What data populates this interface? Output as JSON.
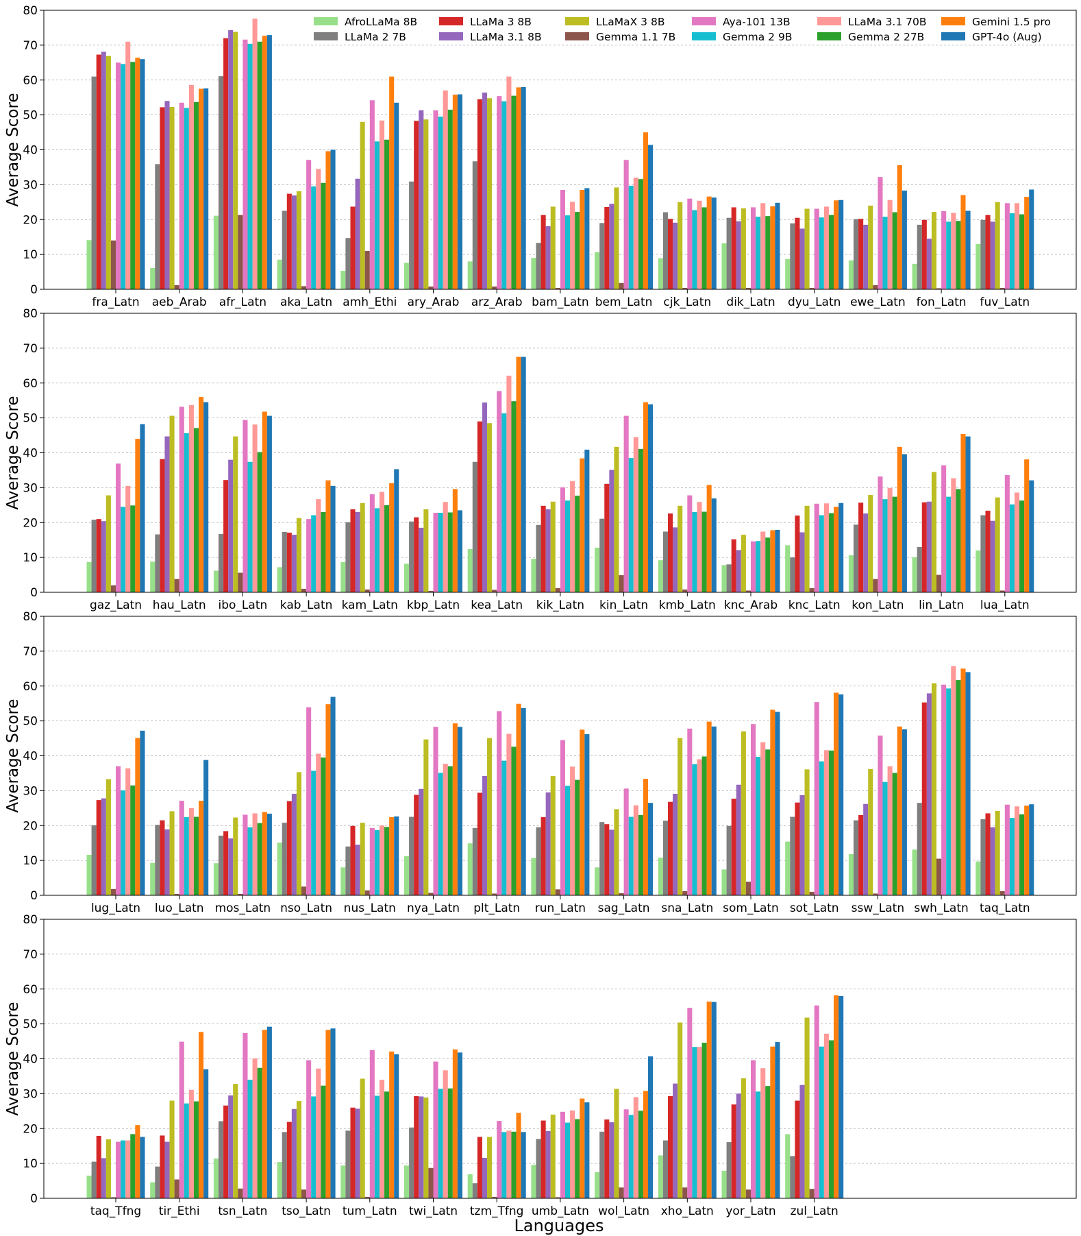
{
  "figure": {
    "xlabel": "Languages"
  },
  "series_meta": [
    {
      "name": "AfroLLaMa 8B",
      "color": "#98df8a"
    },
    {
      "name": "LLaMa 2 7B",
      "color": "#7f7f7f"
    },
    {
      "name": "LLaMa 3 8B",
      "color": "#d62728"
    },
    {
      "name": "LLaMa 3.1 8B",
      "color": "#9467bd"
    },
    {
      "name": "LLaMaX 3 8B",
      "color": "#bcbd22"
    },
    {
      "name": "Gemma 1.1 7B",
      "color": "#8c564b"
    },
    {
      "name": "Aya-101 13B",
      "color": "#e377c2"
    },
    {
      "name": "Gemma 2 9B",
      "color": "#17becf"
    },
    {
      "name": "LLaMa 3.1 70B",
      "color": "#ff9896"
    },
    {
      "name": "Gemma 2 27B",
      "color": "#2ca02c"
    },
    {
      "name": "Gemini 1.5 pro",
      "color": "#ff7f0e"
    },
    {
      "name": "GPT-4o (Aug)",
      "color": "#1f77b4"
    }
  ],
  "legend": {
    "placement": "top-right"
  },
  "chart_data": [
    {
      "type": "bar",
      "ylabel": "Average Score",
      "ylim": [
        0,
        80
      ],
      "yticks": [
        0,
        10,
        20,
        30,
        40,
        50,
        60,
        70,
        80
      ],
      "grid": true,
      "categories": [
        "fra_Latn",
        "aeb_Arab",
        "afr_Latn",
        "aka_Latn",
        "amh_Ethi",
        "ary_Arab",
        "arz_Arab",
        "bam_Latn",
        "bem_Latn",
        "cjk_Latn",
        "dik_Latn",
        "dyu_Latn",
        "ewe_Latn",
        "fon_Latn",
        "fuv_Latn"
      ],
      "series": [
        {
          "name": "AfroLLaMa 8B",
          "values": [
            14.1,
            6.1,
            21.1,
            8.5,
            5.3,
            7.6,
            8.0,
            9.0,
            10.6,
            8.9,
            13.2,
            8.7,
            8.3,
            7.3,
            13.0
          ]
        },
        {
          "name": "LLaMa 2 7B",
          "values": [
            61.0,
            35.9,
            61.1,
            22.5,
            14.7,
            30.9,
            36.7,
            13.3,
            19.0,
            22.1,
            20.5,
            18.9,
            20.1,
            18.5,
            19.9
          ]
        },
        {
          "name": "LLaMa 3 8B",
          "values": [
            67.3,
            52.2,
            72.0,
            27.4,
            23.7,
            48.3,
            54.5,
            21.3,
            23.6,
            20.2,
            23.5,
            20.5,
            20.2,
            19.9,
            21.3
          ]
        },
        {
          "name": "LLaMa 3.1 8B",
          "values": [
            68.1,
            54.0,
            74.3,
            26.9,
            31.7,
            51.3,
            56.4,
            18.1,
            24.5,
            19.1,
            19.5,
            17.4,
            18.5,
            14.5,
            19.4
          ]
        },
        {
          "name": "LLaMaX 3 8B",
          "values": [
            66.9,
            52.3,
            73.8,
            28.1,
            48.0,
            48.7,
            54.8,
            23.7,
            29.2,
            25.0,
            23.2,
            23.1,
            24.0,
            22.2,
            25.0
          ]
        },
        {
          "name": "Gemma 1.1 7B",
          "values": [
            14.0,
            1.2,
            21.3,
            0.9,
            11.0,
            0.8,
            0.8,
            0.4,
            1.8,
            0.4,
            0.4,
            0.4,
            1.2,
            0.3,
            0.4
          ]
        },
        {
          "name": "Aya-101 13B",
          "values": [
            65.0,
            53.5,
            71.6,
            37.1,
            54.2,
            51.3,
            55.4,
            28.5,
            37.1,
            26.0,
            23.5,
            23.1,
            32.2,
            22.4,
            24.7
          ]
        },
        {
          "name": "Gemma 2 9B",
          "values": [
            64.6,
            52.0,
            70.4,
            29.5,
            42.4,
            49.5,
            53.9,
            21.2,
            29.7,
            22.7,
            20.8,
            20.6,
            20.8,
            19.4,
            21.8
          ]
        },
        {
          "name": "LLaMa 3.1 70B",
          "values": [
            71.0,
            58.6,
            77.6,
            34.5,
            48.4,
            57.0,
            61.0,
            25.1,
            32.0,
            25.4,
            24.7,
            23.7,
            25.6,
            21.9,
            24.7
          ]
        },
        {
          "name": "Gemma 2 27B",
          "values": [
            65.2,
            53.7,
            71.0,
            30.5,
            42.9,
            51.5,
            55.5,
            22.2,
            31.6,
            23.5,
            21.0,
            21.3,
            22.1,
            19.6,
            21.5
          ]
        },
        {
          "name": "Gemini 1.5 pro",
          "values": [
            66.4,
            57.5,
            72.7,
            39.6,
            61.0,
            55.8,
            57.9,
            28.5,
            45.0,
            26.6,
            23.8,
            25.5,
            35.6,
            27.0,
            26.5
          ]
        },
        {
          "name": "GPT-4o (Aug)",
          "values": [
            66.0,
            57.6,
            72.9,
            40.0,
            53.5,
            55.9,
            58.0,
            29.0,
            41.4,
            26.3,
            24.8,
            25.6,
            28.3,
            22.5,
            28.6
          ]
        }
      ]
    },
    {
      "type": "bar",
      "ylabel": "Average Score",
      "ylim": [
        0,
        80
      ],
      "yticks": [
        0,
        10,
        20,
        30,
        40,
        50,
        60,
        70,
        80
      ],
      "grid": true,
      "categories": [
        "gaz_Latn",
        "hau_Latn",
        "ibo_Latn",
        "kab_Latn",
        "kam_Latn",
        "kbp_Latn",
        "kea_Latn",
        "kik_Latn",
        "kin_Latn",
        "kmb_Latn",
        "knc_Arab",
        "knc_Latn",
        "kon_Latn",
        "lin_Latn",
        "lua_Latn"
      ],
      "series": [
        {
          "name": "AfroLLaMa 8B",
          "values": [
            8.7,
            8.8,
            6.2,
            7.2,
            8.7,
            8.2,
            12.4,
            9.6,
            12.8,
            9.2,
            7.8,
            13.5,
            10.6,
            10.0,
            12.0
          ]
        },
        {
          "name": "LLaMa 2 7B",
          "values": [
            20.8,
            16.6,
            16.7,
            17.3,
            20.1,
            20.3,
            37.4,
            19.3,
            21.1,
            17.4,
            8.0,
            10.0,
            19.4,
            13.0,
            22.1
          ]
        },
        {
          "name": "LLaMa 3 8B",
          "values": [
            21.0,
            38.2,
            32.2,
            17.1,
            23.8,
            21.5,
            49.0,
            24.8,
            31.1,
            22.6,
            15.2,
            22.0,
            25.7,
            25.8,
            23.4
          ]
        },
        {
          "name": "LLaMa 3.1 8B",
          "values": [
            20.4,
            44.7,
            38.0,
            16.5,
            23.0,
            18.5,
            54.4,
            23.8,
            35.1,
            18.6,
            12.1,
            17.2,
            22.6,
            26.0,
            20.5
          ]
        },
        {
          "name": "LLaMaX 3 8B",
          "values": [
            27.8,
            50.6,
            44.7,
            21.3,
            25.6,
            23.8,
            48.5,
            26.0,
            41.7,
            24.8,
            16.5,
            24.8,
            27.9,
            34.5,
            27.2
          ]
        },
        {
          "name": "Gemma 1.1 7B",
          "values": [
            2.0,
            3.8,
            5.6,
            1.0,
            0.8,
            0.4,
            0.7,
            1.2,
            4.9,
            0.8,
            0.5,
            1.2,
            3.8,
            5.0,
            0.5
          ]
        },
        {
          "name": "Aya-101 13B",
          "values": [
            36.9,
            53.2,
            49.4,
            21.0,
            28.1,
            22.8,
            57.7,
            30.1,
            50.6,
            27.8,
            14.6,
            25.4,
            33.2,
            36.4,
            33.6
          ]
        },
        {
          "name": "Gemma 2 9B",
          "values": [
            24.5,
            45.6,
            37.4,
            22.1,
            24.1,
            22.8,
            51.3,
            26.3,
            38.5,
            23.0,
            14.7,
            22.1,
            26.7,
            27.4,
            25.2
          ]
        },
        {
          "name": "LLaMa 3.1 70B",
          "values": [
            30.5,
            53.7,
            48.1,
            26.7,
            28.8,
            25.9,
            62.1,
            31.9,
            44.5,
            25.9,
            17.4,
            25.5,
            29.9,
            32.7,
            28.6
          ]
        },
        {
          "name": "Gemma 2 27B",
          "values": [
            24.9,
            47.1,
            40.2,
            23.0,
            25.0,
            22.9,
            54.8,
            27.7,
            41.1,
            23.1,
            15.7,
            22.7,
            27.4,
            29.6,
            26.3
          ]
        },
        {
          "name": "Gemini 1.5 pro",
          "values": [
            44.0,
            56.0,
            51.8,
            32.1,
            31.3,
            29.6,
            67.5,
            38.4,
            54.5,
            30.8,
            17.8,
            24.5,
            41.7,
            45.4,
            38.1
          ]
        },
        {
          "name": "GPT-4o (Aug)",
          "values": [
            48.2,
            54.5,
            50.6,
            30.5,
            35.3,
            23.5,
            67.5,
            40.9,
            53.9,
            26.9,
            17.9,
            25.6,
            39.6,
            44.7,
            32.1
          ]
        }
      ]
    },
    {
      "type": "bar",
      "ylabel": "Average Score",
      "ylim": [
        0,
        80
      ],
      "yticks": [
        0,
        10,
        20,
        30,
        40,
        50,
        60,
        70,
        80
      ],
      "grid": true,
      "categories": [
        "lug_Latn",
        "luo_Latn",
        "mos_Latn",
        "nso_Latn",
        "nus_Latn",
        "nya_Latn",
        "plt_Latn",
        "run_Latn",
        "sag_Latn",
        "sna_Latn",
        "som_Latn",
        "sot_Latn",
        "ssw_Latn",
        "swh_Latn",
        "taq_Latn"
      ],
      "series": [
        {
          "name": "AfroLLaMa 8B",
          "values": [
            11.6,
            9.3,
            9.2,
            15.1,
            8.0,
            11.2,
            14.9,
            10.7,
            8.0,
            10.8,
            7.4,
            15.4,
            11.8,
            13.1,
            9.7
          ]
        },
        {
          "name": "LLaMa 2 7B",
          "values": [
            20.1,
            20.2,
            17.1,
            20.8,
            14.0,
            22.5,
            19.3,
            19.5,
            21.0,
            21.4,
            19.9,
            22.5,
            21.5,
            26.5,
            21.8
          ]
        },
        {
          "name": "LLaMa 3 8B",
          "values": [
            27.3,
            21.5,
            18.4,
            27.0,
            19.9,
            28.8,
            29.4,
            22.4,
            20.4,
            26.8,
            27.7,
            26.6,
            23.0,
            55.3,
            23.5
          ]
        },
        {
          "name": "LLaMa 3.1 8B",
          "values": [
            27.8,
            18.9,
            16.3,
            29.1,
            14.5,
            30.5,
            34.2,
            29.5,
            18.8,
            29.1,
            31.7,
            28.7,
            26.2,
            57.9,
            19.5
          ]
        },
        {
          "name": "LLaMaX 3 8B",
          "values": [
            33.3,
            24.1,
            22.3,
            35.3,
            20.8,
            44.7,
            45.1,
            34.2,
            24.7,
            45.1,
            47.0,
            36.1,
            36.2,
            60.8,
            24.2
          ]
        },
        {
          "name": "Gemma 1.1 7B",
          "values": [
            1.8,
            0.4,
            0.4,
            2.5,
            1.4,
            0.7,
            0.5,
            1.7,
            0.6,
            1.2,
            3.9,
            1.0,
            0.5,
            10.5,
            1.2
          ]
        },
        {
          "name": "Aya-101 13B",
          "values": [
            37.0,
            27.1,
            23.1,
            53.9,
            19.3,
            48.3,
            52.8,
            44.5,
            30.6,
            47.8,
            49.1,
            55.4,
            45.8,
            60.4,
            26.0
          ]
        },
        {
          "name": "Gemma 2 9B",
          "values": [
            30.1,
            22.4,
            19.5,
            35.7,
            18.7,
            35.1,
            38.6,
            31.4,
            22.5,
            37.6,
            39.7,
            38.4,
            32.5,
            59.3,
            22.2
          ]
        },
        {
          "name": "LLaMa 3.1 70B",
          "values": [
            36.4,
            25.0,
            23.5,
            40.6,
            20.0,
            37.7,
            46.3,
            36.9,
            25.8,
            39.0,
            43.9,
            41.6,
            37.0,
            65.7,
            25.5
          ]
        },
        {
          "name": "Gemma 2 27B",
          "values": [
            31.5,
            22.5,
            20.7,
            39.5,
            19.6,
            37.0,
            42.6,
            33.1,
            23.0,
            39.8,
            41.8,
            41.5,
            35.1,
            61.7,
            23.2
          ]
        },
        {
          "name": "Gemini 1.5 pro",
          "values": [
            45.1,
            27.1,
            23.9,
            54.8,
            22.4,
            49.3,
            54.9,
            47.5,
            33.4,
            49.8,
            53.2,
            58.1,
            48.4,
            65.0,
            25.7
          ]
        },
        {
          "name": "GPT-4o (Aug)",
          "values": [
            47.2,
            38.8,
            23.4,
            56.9,
            22.6,
            48.3,
            53.7,
            46.2,
            26.5,
            48.4,
            52.6,
            57.6,
            47.6,
            64.0,
            26.1
          ]
        }
      ]
    },
    {
      "type": "bar",
      "ylabel": "Average Score",
      "ylim": [
        0,
        80
      ],
      "yticks": [
        0,
        10,
        20,
        30,
        40,
        50,
        60,
        70,
        80
      ],
      "grid": true,
      "categories": [
        "taq_Tfng",
        "tir_Ethi",
        "tsn_Latn",
        "tso_Latn",
        "tum_Latn",
        "twi_Latn",
        "tzm_Tfng",
        "umb_Latn",
        "wol_Latn",
        "xho_Latn",
        "yor_Latn",
        "zul_Latn"
      ],
      "series": [
        {
          "name": "AfroLLaMa 8B",
          "values": [
            6.5,
            4.6,
            11.4,
            10.4,
            9.4,
            9.4,
            6.9,
            9.6,
            7.5,
            12.3,
            7.9,
            18.4
          ]
        },
        {
          "name": "LLaMa 2 7B",
          "values": [
            10.5,
            9.1,
            22.1,
            19.0,
            19.4,
            20.3,
            4.3,
            17.0,
            19.1,
            16.6,
            16.1,
            12.1
          ]
        },
        {
          "name": "LLaMa 3 8B",
          "values": [
            17.9,
            18.0,
            26.6,
            21.9,
            26.0,
            29.3,
            17.6,
            22.3,
            22.6,
            29.3,
            26.9,
            28.0
          ]
        },
        {
          "name": "LLaMa 3.1 8B",
          "values": [
            11.5,
            16.2,
            29.5,
            25.6,
            25.7,
            29.2,
            11.6,
            19.3,
            21.8,
            32.9,
            30.0,
            32.5
          ]
        },
        {
          "name": "LLaMaX 3 8B",
          "values": [
            16.9,
            28.0,
            32.8,
            27.9,
            34.3,
            28.9,
            17.6,
            24.0,
            31.4,
            50.4,
            34.4,
            51.8
          ]
        },
        {
          "name": "Gemma 1.1 7B",
          "values": [
            0.3,
            5.4,
            2.8,
            2.5,
            0.4,
            8.7,
            0.4,
            0.3,
            3.1,
            3.1,
            2.5,
            2.7
          ]
        },
        {
          "name": "Aya-101 13B",
          "values": [
            16.2,
            44.9,
            47.4,
            39.6,
            42.5,
            39.2,
            22.2,
            24.8,
            25.5,
            54.6,
            39.6,
            55.3
          ]
        },
        {
          "name": "Gemma 2 9B",
          "values": [
            16.6,
            27.2,
            34.0,
            29.2,
            29.4,
            31.4,
            19.0,
            21.7,
            23.9,
            43.4,
            30.6,
            43.5
          ]
        },
        {
          "name": "LLaMa 3.1 70B",
          "values": [
            16.6,
            31.1,
            40.1,
            37.2,
            34.0,
            36.7,
            19.4,
            25.2,
            29.0,
            43.4,
            37.3,
            47.2
          ]
        },
        {
          "name": "Gemma 2 27B",
          "values": [
            18.4,
            27.8,
            37.4,
            32.3,
            30.6,
            31.5,
            19.1,
            22.7,
            25.1,
            44.6,
            32.2,
            45.3
          ]
        },
        {
          "name": "Gemini 1.5 pro",
          "values": [
            21.0,
            47.7,
            48.3,
            48.3,
            42.1,
            42.7,
            24.5,
            28.6,
            30.8,
            56.4,
            43.5,
            58.2
          ]
        },
        {
          "name": "GPT-4o (Aug)",
          "values": [
            17.6,
            37.0,
            49.2,
            48.7,
            41.3,
            41.8,
            19.0,
            27.5,
            40.7,
            56.3,
            44.8,
            58.0
          ]
        }
      ]
    }
  ]
}
